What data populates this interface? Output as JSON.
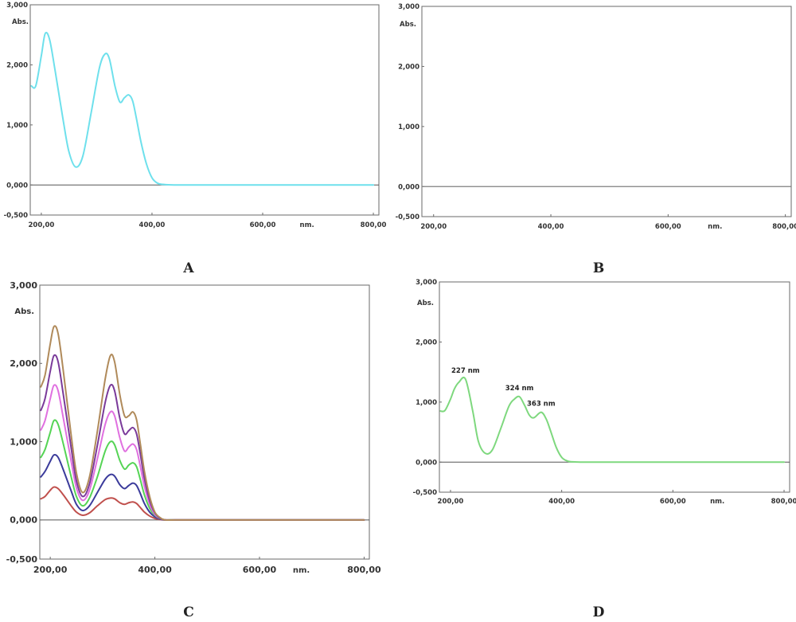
{
  "chart_data": [
    {
      "panel": "A",
      "type": "line",
      "xunit": "nm.",
      "ylabel": "Abs.",
      "xlim": [
        180,
        810
      ],
      "ylim": [
        -0.5,
        3.0
      ],
      "xticks": [
        "200,00",
        "400,00",
        "600,00",
        "800,00"
      ],
      "yticks": [
        "3,000",
        "2,000",
        "1,000",
        "0,000",
        "-0,500"
      ],
      "grid": false,
      "series": [
        {
          "color": "#6ee0ec",
          "x": [
            182,
            190,
            200,
            207,
            215,
            225,
            240,
            250,
            262,
            275,
            290,
            305,
            315,
            323,
            333,
            342,
            350,
            358,
            365,
            372,
            380,
            390,
            400,
            410,
            420,
            440,
            500,
            600,
            700,
            800
          ],
          "y": [
            1.65,
            1.65,
            2.15,
            2.52,
            2.42,
            1.9,
            1.05,
            0.55,
            0.3,
            0.48,
            1.2,
            1.95,
            2.18,
            2.1,
            1.65,
            1.38,
            1.45,
            1.5,
            1.4,
            1.1,
            0.72,
            0.35,
            0.12,
            0.03,
            0.01,
            0.0,
            0.0,
            0.0,
            0.0,
            0.0
          ]
        }
      ]
    },
    {
      "panel": "B",
      "type": "line",
      "xunit": "nm.",
      "ylabel": "Abs.",
      "xlim": [
        180,
        810
      ],
      "ylim": [
        -0.5,
        3.0
      ],
      "xticks": [
        "200,00",
        "400,00",
        "600,00",
        "800,00"
      ],
      "yticks": [
        "3,000",
        "2,000",
        "1,000",
        "0,000",
        "-0,500"
      ],
      "grid": false,
      "series": [
        {
          "color": "#888888",
          "x": [
            180,
            810
          ],
          "y": [
            0.0,
            0.0
          ]
        }
      ]
    },
    {
      "panel": "C",
      "type": "line",
      "xunit": "nm.",
      "ylabel": "Abs.",
      "xlim": [
        180,
        810
      ],
      "ylim": [
        -0.5,
        3.0
      ],
      "xticks": [
        "200,00",
        "400,00",
        "600,00",
        "800,00"
      ],
      "yticks": [
        "3,000",
        "2,000",
        "1,000",
        "0,000",
        "-0,500"
      ],
      "grid": false,
      "x": [
        182,
        190,
        200,
        207,
        215,
        225,
        240,
        250,
        262,
        275,
        290,
        305,
        315,
        323,
        333,
        342,
        350,
        358,
        365,
        372,
        380,
        390,
        400,
        410,
        420,
        440,
        500,
        600,
        700,
        800
      ],
      "series": [
        {
          "color": "#c0504d",
          "y": [
            0.27,
            0.3,
            0.38,
            0.42,
            0.4,
            0.32,
            0.18,
            0.1,
            0.06,
            0.09,
            0.18,
            0.26,
            0.28,
            0.27,
            0.22,
            0.2,
            0.22,
            0.23,
            0.21,
            0.16,
            0.1,
            0.05,
            0.02,
            0.005,
            0.0,
            0.0,
            0.0,
            0.0,
            0.0,
            0.0
          ]
        },
        {
          "color": "#3b3b9b",
          "y": [
            0.55,
            0.62,
            0.75,
            0.83,
            0.8,
            0.64,
            0.37,
            0.2,
            0.12,
            0.18,
            0.35,
            0.52,
            0.58,
            0.56,
            0.45,
            0.4,
            0.44,
            0.47,
            0.44,
            0.34,
            0.21,
            0.1,
            0.04,
            0.01,
            0.0,
            0.0,
            0.0,
            0.0,
            0.0,
            0.0
          ]
        },
        {
          "color": "#55d455",
          "y": [
            0.8,
            0.9,
            1.12,
            1.27,
            1.22,
            0.97,
            0.55,
            0.3,
            0.18,
            0.28,
            0.55,
            0.88,
            1.0,
            0.96,
            0.76,
            0.65,
            0.7,
            0.73,
            0.68,
            0.52,
            0.32,
            0.15,
            0.06,
            0.015,
            0.0,
            0.0,
            0.0,
            0.0,
            0.0,
            0.0
          ]
        },
        {
          "color": "#e070e0",
          "y": [
            1.15,
            1.27,
            1.55,
            1.72,
            1.65,
            1.3,
            0.75,
            0.41,
            0.25,
            0.38,
            0.78,
            1.22,
            1.38,
            1.33,
            1.05,
            0.88,
            0.93,
            0.97,
            0.9,
            0.69,
            0.43,
            0.2,
            0.07,
            0.02,
            0.0,
            0.0,
            0.0,
            0.0,
            0.0,
            0.0
          ]
        },
        {
          "color": "#7a3a9a",
          "y": [
            1.4,
            1.55,
            1.9,
            2.1,
            2.02,
            1.6,
            0.92,
            0.5,
            0.3,
            0.46,
            0.95,
            1.5,
            1.72,
            1.65,
            1.3,
            1.1,
            1.14,
            1.18,
            1.1,
            0.85,
            0.53,
            0.25,
            0.09,
            0.02,
            0.0,
            0.0,
            0.0,
            0.0,
            0.0,
            0.0
          ]
        },
        {
          "color": "#b08a5a",
          "y": [
            1.7,
            1.85,
            2.25,
            2.47,
            2.38,
            1.9,
            1.08,
            0.6,
            0.35,
            0.55,
            1.13,
            1.8,
            2.1,
            2.02,
            1.6,
            1.33,
            1.33,
            1.38,
            1.28,
            0.98,
            0.62,
            0.3,
            0.1,
            0.03,
            0.0,
            0.0,
            0.0,
            0.0,
            0.0,
            0.0
          ]
        }
      ]
    },
    {
      "panel": "D",
      "type": "line",
      "xunit": "nm.",
      "ylabel": "Abs.",
      "xlim": [
        180,
        810
      ],
      "ylim": [
        -0.5,
        3.0
      ],
      "xticks": [
        "200,00",
        "400,00",
        "600,00",
        "800,00"
      ],
      "yticks": [
        "3,000",
        "2,000",
        "1,000",
        "0,000",
        "-0,500"
      ],
      "grid": false,
      "annotations": [
        {
          "text": "227 nm",
          "x": 227,
          "y": 1.38
        },
        {
          "text": "324 nm",
          "x": 324,
          "y": 1.09
        },
        {
          "text": "363 nm",
          "x": 363,
          "y": 0.83
        }
      ],
      "series": [
        {
          "color": "#7ed87e",
          "x": [
            182,
            190,
            200,
            207,
            215,
            227,
            240,
            250,
            262,
            275,
            290,
            305,
            315,
            324,
            333,
            342,
            350,
            363,
            372,
            380,
            390,
            400,
            410,
            420,
            440,
            500,
            600,
            700,
            800
          ],
          "y": [
            0.85,
            0.86,
            1.05,
            1.22,
            1.33,
            1.38,
            0.85,
            0.35,
            0.15,
            0.2,
            0.55,
            0.93,
            1.05,
            1.09,
            0.95,
            0.78,
            0.74,
            0.83,
            0.72,
            0.52,
            0.25,
            0.08,
            0.02,
            0.005,
            0.0,
            0.0,
            0.0,
            0.0,
            0.0
          ]
        }
      ]
    }
  ]
}
